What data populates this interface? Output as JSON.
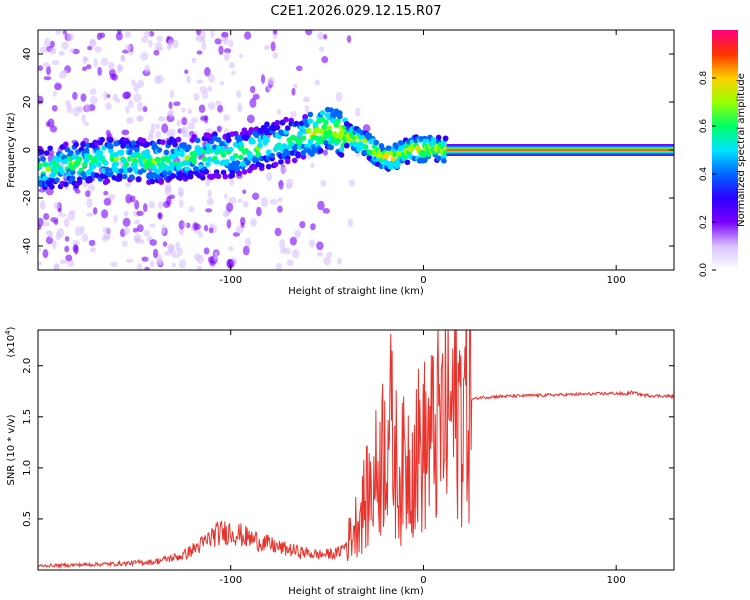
{
  "figure_title": "C2E1.2026.029.12.15.R07",
  "colorbar": {
    "label": "Normalized spectral amplitude",
    "ticks": [
      "0.0",
      "0.2",
      "0.4",
      "0.6",
      "0.8"
    ],
    "range": [
      0,
      1
    ],
    "colors": [
      "#ffffff",
      "#d9c2ff",
      "#7a00ff",
      "#2a00ff",
      "#0066ff",
      "#00e5ff",
      "#00ff66",
      "#99ff00",
      "#ffd000",
      "#ff3300",
      "#ff0080"
    ]
  },
  "chart_data": [
    {
      "type": "heatmap",
      "name": "spectrogram",
      "title": "",
      "xlabel": "Height of straight line (km)",
      "ylabel": "Frequency (Hz)",
      "xlim": [
        -200,
        130
      ],
      "ylim": [
        -50,
        50
      ],
      "xticks": [
        -100,
        0,
        100
      ],
      "xtick_labels": [
        "-100",
        "0",
        "100"
      ],
      "yticks": [
        -40,
        -20,
        0,
        20,
        40
      ],
      "ytick_labels": [
        "-40",
        "-20",
        "0",
        "20",
        "40"
      ],
      "ridge": {
        "x": [
          -200,
          -180,
          -160,
          -140,
          -120,
          -100,
          -80,
          -60,
          -50,
          -40,
          -30,
          -25,
          -20,
          -15,
          -10,
          -5,
          0,
          5,
          10,
          15,
          130
        ],
        "y": [
          -8,
          -6,
          -4,
          -5,
          -3,
          -2,
          2,
          6,
          9,
          6,
          3,
          -1,
          -3,
          -3,
          -1,
          1,
          0,
          1,
          0,
          1,
          0
        ]
      },
      "noise_extent_x": [
        -200,
        -20
      ],
      "steady_band_x": [
        12,
        130
      ]
    },
    {
      "type": "line",
      "name": "snr",
      "title": "",
      "xlabel": "Height of straight line (km)",
      "ylabel": "SNR (10 * v/v)",
      "scale_label": "(x10",
      "scale_exponent": "4",
      "xlim": [
        -200,
        130
      ],
      "ylim": [
        0,
        2.35
      ],
      "xticks": [
        -100,
        0,
        100
      ],
      "xtick_labels": [
        "-100",
        "0",
        "100"
      ],
      "yticks": [
        0.5,
        1.0,
        1.5,
        2.0
      ],
      "ytick_labels": [
        "0.5",
        "1.0",
        "1.5",
        "2.0"
      ],
      "color": "#e8332c",
      "series": [
        {
          "name": "SNR",
          "x": [
            -200,
            -180,
            -160,
            -140,
            -125,
            -115,
            -108,
            -100,
            -92,
            -85,
            -75,
            -65,
            -55,
            -45,
            -40,
            -35,
            -32,
            -28,
            -25,
            -22,
            -20,
            -18,
            -15,
            -12,
            -10,
            -5,
            0,
            5,
            10,
            15,
            20,
            25,
            30,
            40,
            60,
            80,
            100,
            105,
            108,
            115,
            130
          ],
          "y": [
            0.04,
            0.05,
            0.06,
            0.08,
            0.14,
            0.25,
            0.35,
            0.38,
            0.32,
            0.28,
            0.22,
            0.18,
            0.15,
            0.16,
            0.25,
            0.45,
            0.6,
            0.75,
            0.9,
            1.1,
            1.3,
            1.5,
            1.1,
            0.9,
            1.0,
            1.15,
            1.2,
            1.3,
            1.45,
            1.55,
            1.62,
            1.67,
            1.69,
            1.7,
            1.71,
            1.72,
            1.73,
            1.72,
            1.74,
            1.71,
            1.7
          ]
        }
      ]
    }
  ]
}
